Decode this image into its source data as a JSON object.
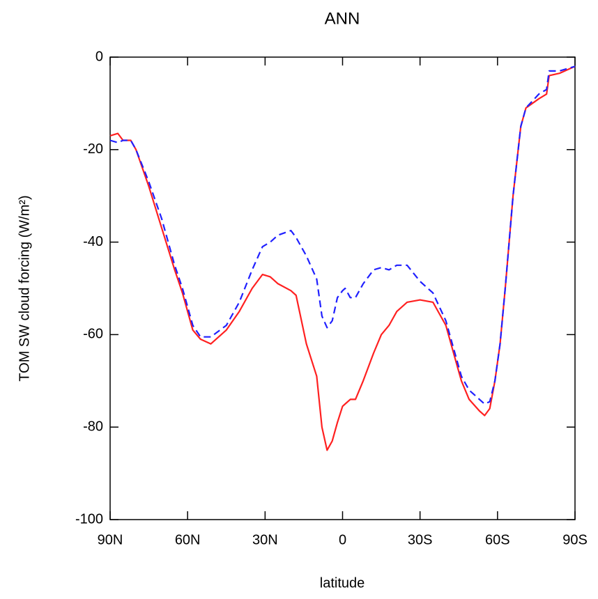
{
  "chart_data": {
    "type": "line",
    "title": "ANN",
    "x_label": "latitude",
    "y_label": "TOM SW cloud forcing (W/m²)",
    "x": [
      90,
      87,
      85,
      82,
      80,
      75,
      70,
      65,
      62,
      58,
      55,
      51,
      45,
      40,
      35,
      31,
      28,
      25,
      20,
      18,
      14,
      10,
      8,
      6,
      4,
      2,
      0,
      -1,
      -3,
      -5,
      -8,
      -12,
      -15,
      -18,
      -21,
      -25,
      -30,
      -35,
      -40,
      -43,
      -46,
      -49,
      -53,
      -55,
      -57,
      -59,
      -61,
      -63,
      -66,
      -69,
      -71,
      -76,
      -79,
      -80,
      -84,
      -90
    ],
    "series": [
      {
        "color": "#ff2020",
        "dash": false,
        "values": [
          -17,
          -16.5,
          -18,
          -18,
          -20,
          -28,
          -37,
          -46,
          -51,
          -59,
          -61,
          -62,
          -59,
          -55,
          -50,
          -47,
          -47.5,
          -49,
          -50.5,
          -51.5,
          -62,
          -69,
          -80,
          -85,
          -83,
          -79,
          -75.5,
          -75,
          -74,
          -74,
          -70,
          -64,
          -60,
          -58,
          -55,
          -53,
          -52.5,
          -53,
          -58,
          -64,
          -70,
          -74,
          -76.5,
          -77.5,
          -76,
          -70,
          -62,
          -50,
          -30,
          -15,
          -11,
          -9,
          -8,
          -4,
          -3.5,
          -2
        ]
      },
      {
        "color": "#2020ff",
        "dash": true,
        "values": [
          -18,
          -18.5,
          -18,
          -18,
          -20,
          -27,
          -35,
          -45,
          -50,
          -58,
          -60.5,
          -60.5,
          -58,
          -53,
          -46,
          -41,
          -40,
          -38.5,
          -37.5,
          -39,
          -43,
          -48,
          -56,
          -58.5,
          -57,
          -52,
          -50.5,
          -50,
          -52,
          -52,
          -49,
          -46,
          -45.5,
          -46,
          -45,
          -45,
          -48.5,
          -51,
          -57,
          -63,
          -69,
          -72,
          -74,
          -75,
          -74.5,
          -70,
          -62,
          -50,
          -30,
          -15,
          -11,
          -8,
          -7,
          -3,
          -3,
          -2
        ]
      }
    ],
    "xlim": [
      90,
      -90
    ],
    "xticks": [
      {
        "value": 90,
        "label": "90N"
      },
      {
        "value": 60,
        "label": "60N"
      },
      {
        "value": 30,
        "label": "30N"
      },
      0,
      {
        "value": -30,
        "label": "30S"
      },
      {
        "value": -60,
        "label": "60S"
      },
      {
        "value": -90,
        "label": "90S"
      }
    ],
    "ylim": [
      -100,
      0
    ],
    "yticks": [
      -100,
      -80,
      -60,
      -40,
      -20,
      0
    ]
  }
}
